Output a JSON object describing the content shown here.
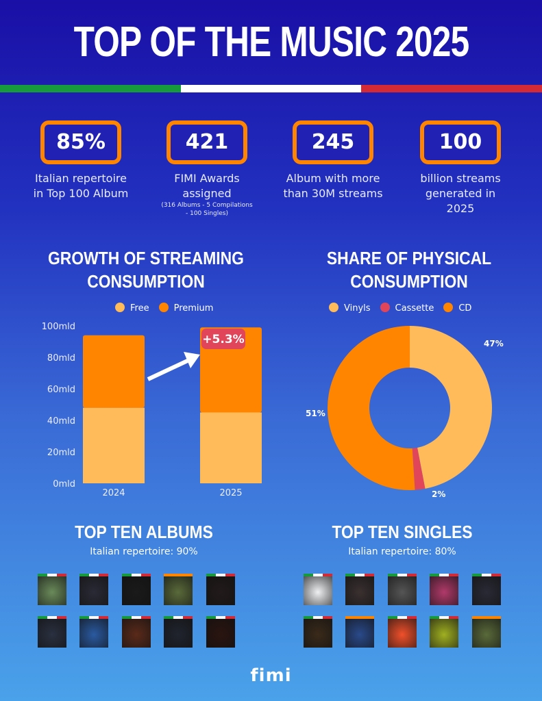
{
  "title": "TOP OF THE MUSIC 2025",
  "flag_colors": [
    "#179a3c",
    "#ffffff",
    "#d42a35"
  ],
  "stats": [
    {
      "value": "85%",
      "label": "Italian repertoire in Top 100 Album",
      "note": ""
    },
    {
      "value": "421",
      "label": "FIMI Awards assigned",
      "note": "(316 Albums - 5 Compilations - 100 Singles)"
    },
    {
      "value": "245",
      "label": "Album with more than 30M streams",
      "note": ""
    },
    {
      "value": "100",
      "label": "billion streams generated in 2025",
      "note": ""
    }
  ],
  "chart_data": [
    {
      "type": "bar",
      "stacked": true,
      "title": "GROWTH OF STREAMING CONSUMPTION",
      "categories": [
        "2024",
        "2025"
      ],
      "series": [
        {
          "name": "Free",
          "values": [
            48,
            45
          ],
          "color": "#ffbb5a"
        },
        {
          "name": "Premium",
          "values": [
            46,
            54
          ],
          "color": "#ff8400"
        }
      ],
      "ylim": [
        0,
        100
      ],
      "yticks": [
        "0mld",
        "20mld",
        "40mld",
        "60mld",
        "80mld",
        "100mld"
      ],
      "annotation": "+5.3%",
      "legend": "top"
    },
    {
      "type": "pie",
      "donut": true,
      "title": "SHARE OF PHYSICAL CONSUMPTION",
      "slices": [
        {
          "name": "Vinyls",
          "value": 47,
          "label": "47%",
          "color": "#ffbb5a"
        },
        {
          "name": "Cassette",
          "value": 2,
          "label": "2%",
          "color": "#e0455a"
        },
        {
          "name": "CD",
          "value": 51,
          "label": "51%",
          "color": "#ff8400"
        }
      ],
      "legend": "top"
    }
  ],
  "albums": {
    "title": "TOP TEN ALBUMS",
    "subtitle": "Italian repertoire: 90%",
    "covers": [
      [
        "it",
        "#6a8a5a"
      ],
      [
        "it",
        "#2a2a36"
      ],
      [
        "it",
        "#1a1a1a"
      ],
      [
        "intl",
        "#5a6a3a"
      ],
      [
        "it",
        "#221a1a"
      ],
      [
        "it",
        "#2a3040"
      ],
      [
        "it",
        "#2a5aa0"
      ],
      [
        "it",
        "#5a2a1a"
      ],
      [
        "it",
        "#20242e"
      ],
      [
        "it",
        "#2a1410"
      ]
    ]
  },
  "singles": {
    "title": "TOP TEN SINGLES",
    "subtitle": "Italian repertoire: 80%",
    "covers": [
      [
        "it",
        "#eef0f2"
      ],
      [
        "it",
        "#3a3030"
      ],
      [
        "it",
        "#555555"
      ],
      [
        "it",
        "#b03a6a"
      ],
      [
        "it",
        "#2a2a36"
      ],
      [
        "it",
        "#3a2a1a"
      ],
      [
        "intl",
        "#2a4a8a"
      ],
      [
        "it",
        "#f0502a"
      ],
      [
        "it",
        "#a0b020"
      ],
      [
        "intl",
        "#5a6a3a"
      ]
    ]
  },
  "logo": "fimi"
}
